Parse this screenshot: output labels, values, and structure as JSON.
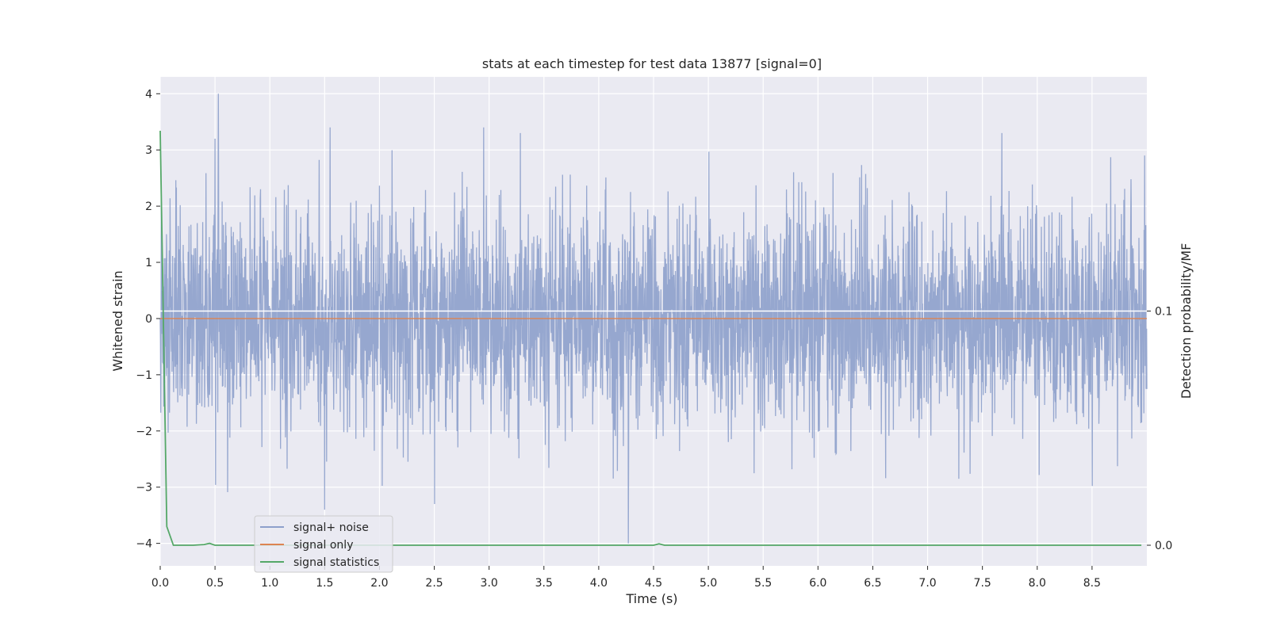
{
  "chart_data": {
    "type": "line",
    "title": "stats at each timestep for test data 13877 [signal=0]",
    "xlabel": "Time (s)",
    "ylabel": "Whitened strain",
    "y2label": "Detection probability/MF",
    "xlim": [
      0,
      9.0
    ],
    "ylim": [
      -4.4,
      4.3
    ],
    "y2lim": [
      -0.0088,
      0.2
    ],
    "x_ticks": [
      "0.0",
      "0.5",
      "1.0",
      "1.5",
      "2.0",
      "2.5",
      "3.0",
      "3.5",
      "4.0",
      "4.5",
      "5.0",
      "5.5",
      "6.0",
      "6.5",
      "7.0",
      "7.5",
      "8.0",
      "8.5"
    ],
    "y_ticks": [
      "4",
      "3",
      "2",
      "1",
      "0",
      "−1",
      "−2",
      "−3",
      "−4"
    ],
    "y2_ticks": [
      "0.1",
      "0.0"
    ],
    "grid": true,
    "legend_position": "lower-left",
    "colors": {
      "signal_noise": "#8da0cb",
      "signal_only": "#dd8452",
      "signal_statistics": "#55a868",
      "background": "#eaeaf2"
    },
    "series": [
      {
        "name": "signal+ noise",
        "axis": "left",
        "description_points": {
          "x": [
            0.0,
            0.01,
            0.5,
            0.53,
            1.5,
            1.55,
            2.95,
            4.27,
            4.28,
            8.98
          ],
          "y": [
            0.0,
            2.2,
            3.2,
            4.0,
            -3.4,
            3.4,
            3.4,
            -4.0,
            1.2,
            2.9
          ]
        },
        "typical_envelope": [
          -2.0,
          2.0
        ]
      },
      {
        "name": "signal only",
        "axis": "left",
        "x": [
          0.0,
          9.0
        ],
        "y": [
          0.0,
          0.0
        ]
      },
      {
        "name": "signal statistics",
        "axis": "right",
        "x": [
          0.0,
          0.06,
          0.12,
          0.2,
          0.3,
          0.4,
          0.45,
          0.5,
          1.0,
          2.0,
          3.0,
          4.0,
          4.5,
          4.55,
          4.6,
          5.0,
          6.0,
          7.0,
          8.0,
          8.95
        ],
        "y": [
          0.177,
          0.008,
          0.0,
          0.0,
          0.0,
          0.0003,
          0.0008,
          0.0,
          0.0,
          0.0,
          0.0,
          0.0,
          0.0,
          0.0006,
          0.0,
          0.0,
          0.0,
          0.0,
          0.0,
          0.0
        ]
      }
    ],
    "y2_reference_line": 0.1
  }
}
